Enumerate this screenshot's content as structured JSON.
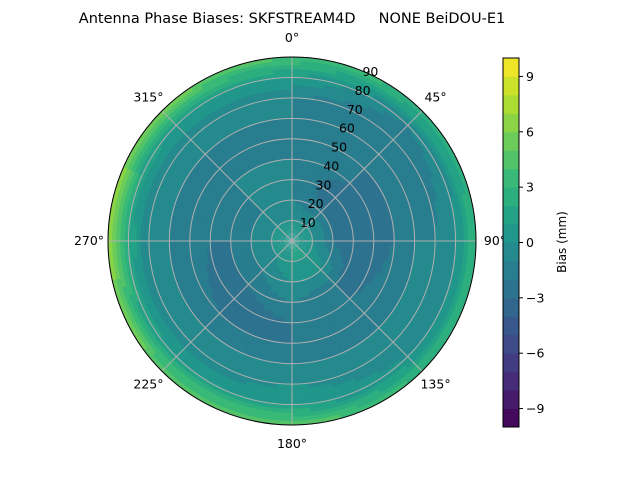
{
  "chart_data": {
    "type": "heatmap",
    "projection": "polar",
    "title": "Antenna Phase Biases: SKFSTREAM4D     NONE BeiDOU-E1",
    "theta_direction": "clockwise",
    "theta_zero": "north",
    "theta_tick_labels": [
      "0°",
      "45°",
      "90°",
      "135°",
      "180°",
      "225°",
      "270°",
      "315°"
    ],
    "r_tick_labels": [
      "10",
      "20",
      "30",
      "40",
      "50",
      "60",
      "70",
      "80",
      "90"
    ],
    "r_range": [
      0,
      90
    ],
    "grid": true,
    "colormap": "viridis",
    "colorbar": {
      "label": "Bias (mm)",
      "range": [
        -10,
        10
      ],
      "level_step": 1,
      "ticks": [
        -9,
        -6,
        -3,
        0,
        3,
        6,
        9
      ],
      "tick_labels": [
        "−9",
        "−6",
        "−3",
        "0",
        "3",
        "6",
        "9"
      ]
    },
    "azimuth_deg": [
      0,
      45,
      90,
      135,
      180,
      225,
      270,
      315
    ],
    "zenith_deg": [
      0,
      10,
      20,
      30,
      40,
      50,
      60,
      70,
      80,
      90
    ],
    "values": [
      [
        1,
        0,
        -1,
        -1,
        -1,
        -1,
        -1,
        -1,
        1,
        4
      ],
      [
        1,
        0,
        -2,
        -3,
        -2,
        -2,
        -2,
        -2,
        -1,
        3
      ],
      [
        1,
        0,
        -2,
        -3,
        -3,
        -2,
        -1,
        -1,
        0,
        3
      ],
      [
        1,
        1,
        0,
        -2,
        -2,
        -1,
        -1,
        -1,
        0,
        3
      ],
      [
        1,
        1,
        0,
        -1,
        -2,
        -2,
        -1,
        0,
        1,
        5
      ],
      [
        1,
        0,
        -1,
        -2,
        -3,
        -2,
        -1,
        -1,
        1,
        5
      ],
      [
        1,
        0,
        -1,
        -2,
        -2,
        -1,
        -1,
        -1,
        2,
        7
      ],
      [
        1,
        0,
        -1,
        -1,
        -1,
        -2,
        -1,
        -1,
        1,
        6
      ]
    ]
  }
}
